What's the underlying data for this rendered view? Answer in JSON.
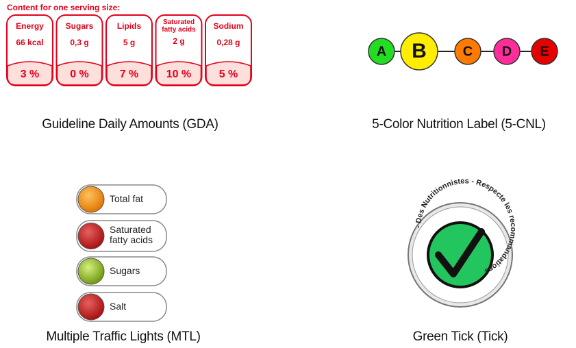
{
  "gda": {
    "heading": "Content for one serving size:",
    "items": [
      {
        "name": "Energy",
        "amount": "66 kcal",
        "percent": "3 %"
      },
      {
        "name": "Sugars",
        "amount": "0,3 g",
        "percent": "0 %"
      },
      {
        "name": "Lipids",
        "amount": "5 g",
        "percent": "7 %"
      },
      {
        "name": "Saturated fatty acids",
        "amount": "2 g",
        "percent": "10 %"
      },
      {
        "name": "Sodium",
        "amount": "0,28 g",
        "percent": "5 %"
      }
    ],
    "caption": "Guideline Daily Amounts (GDA)"
  },
  "cnl": {
    "grades": [
      "A",
      "B",
      "C",
      "D",
      "E"
    ],
    "caption": "5-Color Nutrition Label (5-CNL)"
  },
  "mtl": {
    "items": [
      "Total fat",
      "Saturated fatty acids",
      "Sugars",
      "Salt"
    ],
    "caption": "Multiple Traffic Lights (MTL)"
  },
  "tick": {
    "ring_text": "- Des Nutritionnistes - Respecte les recommandations",
    "caption": "Green Tick (Tick)"
  }
}
